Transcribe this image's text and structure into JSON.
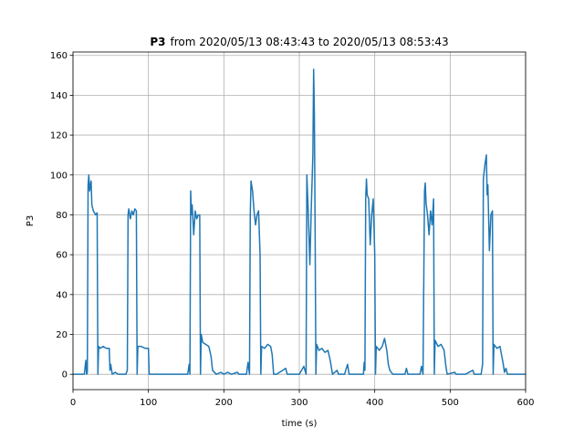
{
  "chart_data": {
    "type": "line",
    "title_bold": "P3",
    "title": "from 2020/05/13 08:43:43 to 2020/05/13 08:53:43",
    "xlabel": "time (s)",
    "ylabel": "P3",
    "color": "#1f77b4",
    "grid": true,
    "xlim": [
      0,
      600
    ],
    "ylim": [
      -7.7,
      161.7
    ],
    "xticks": [
      0,
      100,
      200,
      300,
      400,
      500,
      600
    ],
    "yticks": [
      0,
      20,
      40,
      60,
      80,
      100,
      120,
      140,
      160
    ],
    "x": [
      0,
      15,
      17,
      18,
      19,
      20,
      21,
      22,
      24,
      25,
      27,
      30,
      32,
      33,
      34,
      36,
      40,
      44,
      48,
      49,
      50,
      52,
      56,
      60,
      70,
      72,
      73,
      74,
      76,
      78,
      80,
      82,
      84,
      85,
      86,
      90,
      96,
      100,
      101,
      110,
      140,
      152,
      154,
      155,
      156,
      157,
      158,
      160,
      162,
      164,
      166,
      168,
      169,
      170,
      172,
      176,
      180,
      183,
      185,
      190,
      196,
      200,
      205,
      210,
      218,
      220,
      230,
      232,
      234,
      235,
      236,
      238,
      240,
      242,
      244,
      246,
      248,
      249,
      250,
      254,
      258,
      262,
      264,
      266,
      270,
      282,
      284,
      300,
      306,
      309,
      310,
      312,
      314,
      316,
      318,
      319,
      320,
      321,
      322,
      323,
      326,
      330,
      334,
      338,
      341,
      344,
      350,
      352,
      360,
      364,
      366,
      385,
      386,
      387,
      388,
      389,
      390,
      392,
      394,
      396,
      398,
      400,
      401,
      402,
      406,
      410,
      413,
      416,
      418,
      420,
      424,
      440,
      442,
      444,
      460,
      462,
      464,
      466,
      467,
      468,
      470,
      472,
      474,
      476,
      478,
      479,
      480,
      484,
      488,
      492,
      494,
      496,
      506,
      508,
      520,
      530,
      532,
      541,
      543,
      544,
      546,
      548,
      549,
      550,
      552,
      554,
      556,
      557,
      558,
      562,
      566,
      570,
      572,
      574,
      576,
      600
    ],
    "values": [
      0,
      0,
      7,
      0,
      1,
      95,
      100,
      92,
      97,
      85,
      82,
      80,
      81,
      0,
      14,
      13,
      14,
      13,
      13,
      2,
      5,
      0,
      1,
      0,
      0,
      2,
      80,
      83,
      78,
      82,
      80,
      83,
      82,
      0,
      14,
      14,
      13,
      13,
      0,
      0,
      0,
      0,
      5,
      0,
      92,
      80,
      85,
      70,
      82,
      78,
      80,
      80,
      0,
      20,
      16,
      15,
      14,
      9,
      2,
      0,
      1,
      0,
      1,
      0,
      1,
      0,
      0,
      6,
      0,
      80,
      97,
      92,
      82,
      75,
      80,
      82,
      60,
      0,
      14,
      13,
      15,
      14,
      10,
      0,
      0,
      3,
      0,
      0,
      4,
      0,
      100,
      80,
      55,
      85,
      110,
      153,
      130,
      70,
      0,
      15,
      12,
      13,
      11,
      12,
      7,
      0,
      2,
      0,
      0,
      5,
      0,
      0,
      6,
      2,
      88,
      98,
      90,
      88,
      65,
      80,
      88,
      60,
      0,
      14,
      12,
      14,
      18,
      12,
      5,
      2,
      0,
      0,
      3,
      0,
      0,
      4,
      0,
      92,
      96,
      86,
      80,
      70,
      82,
      75,
      88,
      0,
      17,
      14,
      15,
      12,
      5,
      0,
      1,
      0,
      0,
      2,
      0,
      0,
      5,
      98,
      105,
      110,
      90,
      95,
      62,
      80,
      82,
      0,
      15,
      13,
      14,
      6,
      1,
      3,
      0,
      0
    ]
  }
}
